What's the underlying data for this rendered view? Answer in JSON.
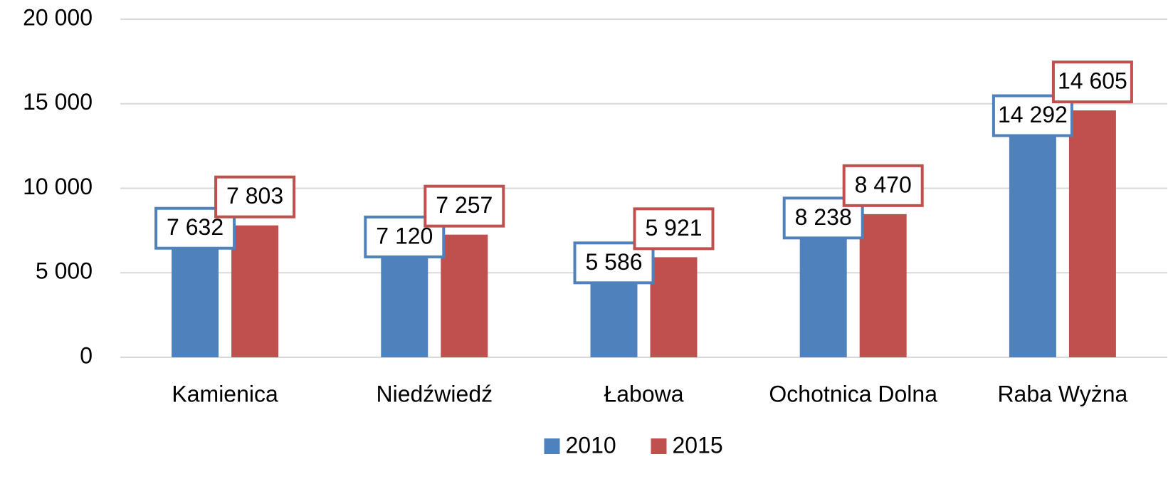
{
  "chart_data": {
    "type": "bar",
    "categories": [
      "Kamienica",
      "Niedźwiedź",
      "Łabowa",
      "Ochotnica Dolna",
      "Raba Wyżna"
    ],
    "series": [
      {
        "name": "2010",
        "color": "#4f81bd",
        "values": [
          7632,
          7120,
          5586,
          8238,
          14292
        ],
        "value_labels": [
          "7 632",
          "7 120",
          "5 586",
          "8 238",
          "14 292"
        ]
      },
      {
        "name": "2015",
        "color": "#c0504d",
        "values": [
          7803,
          7257,
          5921,
          8470,
          14605
        ],
        "value_labels": [
          "7 803",
          "7 257",
          "5 921",
          "8 470",
          "14 605"
        ]
      }
    ],
    "ylim": [
      0,
      20000
    ],
    "yticks": [
      0,
      {
        "value": 5000,
        "label": "5 000"
      },
      {
        "value": 10000,
        "label": "10 000"
      },
      {
        "value": 15000,
        "label": "15 000"
      },
      {
        "value": 20000,
        "label": "20 000"
      }
    ],
    "grid": true,
    "legend": "bottom"
  }
}
